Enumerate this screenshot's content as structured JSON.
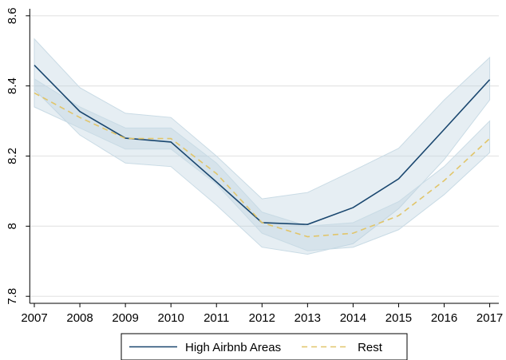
{
  "chart_data": {
    "type": "line",
    "x": [
      2007,
      2008,
      2009,
      2010,
      2011,
      2012,
      2013,
      2014,
      2015,
      2016,
      2017
    ],
    "xlim": [
      2006.9,
      2017.2
    ],
    "xticks": [
      2007,
      2008,
      2009,
      2010,
      2011,
      2012,
      2013,
      2014,
      2015,
      2016,
      2017
    ],
    "ylim": [
      7.78,
      8.62
    ],
    "yticks": [
      7.8,
      8,
      8.2,
      8.4,
      8.6
    ],
    "grid": true,
    "legend": "bottom",
    "series": [
      {
        "name": "High Airbnb Areas",
        "color": "#1a476f",
        "dash": false,
        "values": [
          8.459,
          8.327,
          8.251,
          8.24,
          8.126,
          8.01,
          8.005,
          8.053,
          8.135,
          8.276,
          8.418
        ],
        "upper": [
          8.534,
          8.395,
          8.322,
          8.31,
          8.2,
          8.078,
          8.096,
          8.158,
          8.222,
          8.36,
          8.481
        ],
        "lower": [
          8.39,
          8.26,
          8.18,
          8.17,
          8.06,
          7.94,
          7.92,
          7.95,
          8.05,
          8.19,
          8.36
        ]
      },
      {
        "name": "Rest",
        "color": "#e1c56a",
        "dash": true,
        "values": [
          8.38,
          8.31,
          8.25,
          8.25,
          8.15,
          8.01,
          7.97,
          7.98,
          8.03,
          8.13,
          8.25
        ],
        "upper": [
          8.42,
          8.34,
          8.28,
          8.28,
          8.18,
          8.04,
          8.0,
          8.01,
          8.07,
          8.17,
          8.3
        ],
        "lower": [
          8.34,
          8.28,
          8.22,
          8.22,
          8.12,
          7.98,
          7.93,
          7.94,
          7.99,
          8.09,
          8.21
        ]
      }
    ]
  }
}
